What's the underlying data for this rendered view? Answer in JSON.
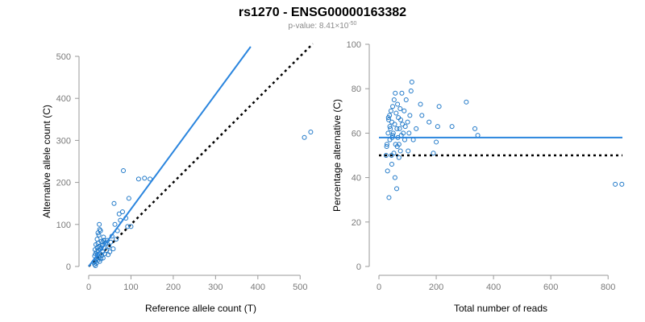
{
  "header": {
    "title": "rs1270 - ENSG00000163382",
    "subtitle_prefix": "p-value: 8.41×10",
    "subtitle_exp": "-50"
  },
  "colors": {
    "points": "#1f78c8",
    "fit_line": "#2a85de",
    "reference_line": "#000000",
    "axis": "#9a9a9a"
  },
  "chart_data": [
    {
      "type": "scatter",
      "xlabel": "Reference allele count (T)",
      "ylabel": "Alternative allele count (C)",
      "xlim": [
        0,
        530
      ],
      "ylim": [
        0,
        500
      ],
      "xticks": [
        0,
        100,
        200,
        300,
        400,
        500
      ],
      "yticks": [
        0,
        100,
        200,
        300,
        400,
        500
      ],
      "grid": false,
      "fit_line": {
        "x": [
          0,
          383
        ],
        "y": [
          0,
          523
        ]
      },
      "reference_line": {
        "x": [
          0,
          530
        ],
        "y": [
          0,
          530
        ],
        "style": "dotted"
      },
      "points": [
        [
          12,
          10
        ],
        [
          14,
          25
        ],
        [
          15,
          12
        ],
        [
          16,
          30
        ],
        [
          18,
          8
        ],
        [
          18,
          18
        ],
        [
          19,
          35
        ],
        [
          20,
          20
        ],
        [
          20,
          45
        ],
        [
          21,
          28
        ],
        [
          22,
          15
        ],
        [
          22,
          55
        ],
        [
          23,
          38
        ],
        [
          24,
          22
        ],
        [
          25,
          48
        ],
        [
          26,
          12
        ],
        [
          27,
          30
        ],
        [
          28,
          42
        ],
        [
          29,
          18
        ],
        [
          30,
          60
        ],
        [
          31,
          26
        ],
        [
          32,
          50
        ],
        [
          33,
          35
        ],
        [
          34,
          20
        ],
        [
          35,
          70
        ],
        [
          36,
          44
        ],
        [
          38,
          30
        ],
        [
          40,
          55
        ],
        [
          42,
          38
        ],
        [
          44,
          62
        ],
        [
          46,
          28
        ],
        [
          48,
          48
        ],
        [
          50,
          35
        ],
        [
          52,
          58
        ],
        [
          55,
          72
        ],
        [
          58,
          42
        ],
        [
          60,
          150
        ],
        [
          62,
          100
        ],
        [
          65,
          65
        ],
        [
          68,
          85
        ],
        [
          72,
          125
        ],
        [
          75,
          110
        ],
        [
          80,
          130
        ],
        [
          82,
          228
        ],
        [
          88,
          115
        ],
        [
          92,
          95
        ],
        [
          95,
          162
        ],
        [
          100,
          95
        ],
        [
          118,
          208
        ],
        [
          132,
          210
        ],
        [
          145,
          208
        ],
        [
          510,
          307
        ],
        [
          525,
          320
        ],
        [
          15,
          40
        ],
        [
          17,
          52
        ],
        [
          20,
          65
        ],
        [
          22,
          80
        ],
        [
          25,
          100
        ],
        [
          28,
          85
        ],
        [
          30,
          45
        ],
        [
          33,
          58
        ],
        [
          36,
          62
        ],
        [
          14,
          5
        ],
        [
          16,
          2
        ],
        [
          24,
          75
        ],
        [
          26,
          88
        ]
      ]
    },
    {
      "type": "scatter",
      "xlabel": "Total number of reads",
      "ylabel": "Percentage alternative (C)",
      "xlim": [
        0,
        850
      ],
      "ylim": [
        0,
        100
      ],
      "xticks": [
        0,
        200,
        400,
        600,
        800
      ],
      "yticks": [
        0,
        20,
        40,
        60,
        80,
        100
      ],
      "grid": false,
      "fit_line": {
        "x": [
          0,
          850
        ],
        "y": [
          58,
          58
        ]
      },
      "reference_line": {
        "x": [
          0,
          850
        ],
        "y": [
          50,
          50
        ],
        "style": "dotted"
      },
      "points": [
        [
          25,
          50
        ],
        [
          28,
          55
        ],
        [
          30,
          43
        ],
        [
          32,
          60
        ],
        [
          34,
          66
        ],
        [
          35,
          31
        ],
        [
          37,
          68
        ],
        [
          38,
          57
        ],
        [
          40,
          62
        ],
        [
          42,
          70
        ],
        [
          44,
          50
        ],
        [
          45,
          65
        ],
        [
          46,
          58
        ],
        [
          48,
          72
        ],
        [
          50,
          60
        ],
        [
          52,
          51
        ],
        [
          53,
          75
        ],
        [
          55,
          64
        ],
        [
          56,
          40
        ],
        [
          57,
          78
        ],
        [
          58,
          55
        ],
        [
          60,
          69
        ],
        [
          62,
          35
        ],
        [
          63,
          62
        ],
        [
          65,
          73
        ],
        [
          66,
          58
        ],
        [
          68,
          67
        ],
        [
          70,
          55
        ],
        [
          72,
          62
        ],
        [
          74,
          71
        ],
        [
          75,
          52
        ],
        [
          76,
          66
        ],
        [
          78,
          59
        ],
        [
          80,
          78
        ],
        [
          82,
          64
        ],
        [
          85,
          60
        ],
        [
          88,
          70
        ],
        [
          90,
          57
        ],
        [
          92,
          63
        ],
        [
          95,
          75
        ],
        [
          100,
          65
        ],
        [
          102,
          52
        ],
        [
          105,
          60
        ],
        [
          108,
          68
        ],
        [
          112,
          79
        ],
        [
          115,
          83
        ],
        [
          120,
          57
        ],
        [
          130,
          62
        ],
        [
          145,
          73
        ],
        [
          150,
          68
        ],
        [
          175,
          65
        ],
        [
          190,
          51
        ],
        [
          200,
          56
        ],
        [
          205,
          63
        ],
        [
          210,
          72
        ],
        [
          255,
          63
        ],
        [
          305,
          74
        ],
        [
          335,
          62
        ],
        [
          345,
          59
        ],
        [
          825,
          37
        ],
        [
          848,
          37
        ],
        [
          45,
          46
        ],
        [
          48,
          59
        ],
        [
          38,
          63
        ],
        [
          33,
          67
        ],
        [
          27,
          54
        ],
        [
          64,
          54
        ],
        [
          70,
          49
        ]
      ]
    }
  ]
}
